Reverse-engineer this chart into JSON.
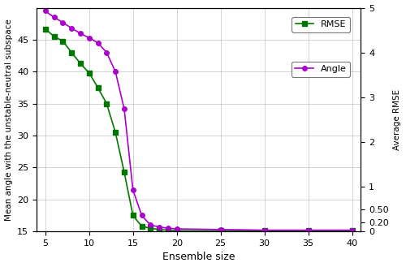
{
  "rmse_x": [
    5,
    6,
    7,
    8,
    9,
    10,
    11,
    12,
    13,
    14,
    15,
    16,
    17,
    18,
    19,
    20,
    25,
    30,
    35,
    40
  ],
  "rmse_y": [
    46.7,
    45.5,
    44.8,
    43.0,
    41.3,
    39.8,
    37.5,
    35.0,
    30.5,
    24.3,
    17.5,
    15.8,
    15.5,
    15.3,
    15.2,
    15.1,
    15.1,
    15.1,
    15.1,
    15.1
  ],
  "angle_x": [
    5,
    6,
    7,
    8,
    9,
    10,
    11,
    12,
    13,
    14,
    15,
    16,
    17,
    18,
    19,
    20,
    25,
    30,
    35,
    40
  ],
  "angle_y": [
    49.5,
    48.5,
    47.7,
    46.8,
    46.0,
    45.3,
    44.5,
    43.0,
    40.0,
    34.2,
    21.5,
    17.5,
    16.0,
    15.7,
    15.5,
    15.4,
    15.3,
    15.2,
    15.2,
    15.2
  ],
  "rmse_color": "#007700",
  "angle_color": "#aa00cc",
  "ylabel_left": "Mean angle with the unstable-neutral subspace",
  "ylabel_right": "Average RMSE",
  "xlabel": "Ensemble size",
  "ylim_left": [
    15,
    50
  ],
  "ylim_right_ticks": [
    0,
    0.2,
    0.5,
    1,
    2,
    3,
    4,
    5
  ],
  "yticks_left": [
    15,
    20,
    25,
    30,
    35,
    40,
    45
  ],
  "xticks": [
    5,
    10,
    15,
    20,
    25,
    30,
    35,
    40
  ],
  "legend_rmse": "RMSE",
  "legend_angle": "Angle",
  "background_color": "#ffffff"
}
